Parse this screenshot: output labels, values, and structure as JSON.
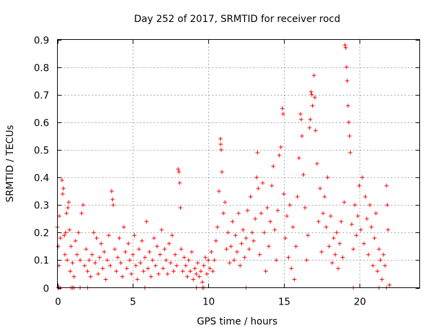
{
  "chart_data": {
    "type": "scatter",
    "title": "Day 252 of 2017, SRMTID for receiver rocd",
    "xlabel": "GPS time / hours",
    "ylabel": "SRMTID / TECUs",
    "xlim": [
      0,
      24
    ],
    "ylim": [
      0,
      0.9
    ],
    "grid": true,
    "marker": "+",
    "color": "#ff0000",
    "x_ticks": [
      0,
      5,
      10,
      15,
      20
    ],
    "x_tick_labels": [
      "0",
      "5",
      "10",
      "15",
      "20"
    ],
    "y_ticks": [
      0,
      0.1,
      0.2,
      0.3,
      0.4,
      0.5,
      0.6,
      0.7,
      0.8,
      0.9
    ],
    "y_tick_labels": [
      "0",
      "0.1",
      "0.2",
      "0.3",
      "0.4",
      "0.5",
      "0.6",
      "0.7",
      "0.8",
      "0.9"
    ],
    "series": [
      {
        "name": "SRMTID",
        "points": [
          [
            0.0,
            0.22
          ],
          [
            0.05,
            0.15
          ],
          [
            0.1,
            0.08
          ],
          [
            0.12,
            0.26
          ],
          [
            0.2,
            0.18
          ],
          [
            0.3,
            0.39
          ],
          [
            0.35,
            0.34
          ],
          [
            0.4,
            0.36
          ],
          [
            0.45,
            0.19
          ],
          [
            0.5,
            0.12
          ],
          [
            0.55,
            0.2
          ],
          [
            0.6,
            0.27
          ],
          [
            0.65,
            0.1
          ],
          [
            0.7,
            0.29
          ],
          [
            0.75,
            0.31
          ],
          [
            0.8,
            0.21
          ],
          [
            0.85,
            0.06
          ],
          [
            0.9,
            0.15
          ],
          [
            1.0,
            0.09
          ],
          [
            1.1,
            0.04
          ],
          [
            1.2,
            0.17
          ],
          [
            1.3,
            0.12
          ],
          [
            1.4,
            0.2
          ],
          [
            1.5,
            0.1
          ],
          [
            1.6,
            0.27
          ],
          [
            1.7,
            0.3
          ],
          [
            1.8,
            0.08
          ],
          [
            1.9,
            0.14
          ],
          [
            2.0,
            0.06
          ],
          [
            2.1,
            0.1
          ],
          [
            2.2,
            0.04
          ],
          [
            2.3,
            0.12
          ],
          [
            2.4,
            0.2
          ],
          [
            2.5,
            0.09
          ],
          [
            2.6,
            0.18
          ],
          [
            2.7,
            0.05
          ],
          [
            2.8,
            0.11
          ],
          [
            2.9,
            0.16
          ],
          [
            3.0,
            0.07
          ],
          [
            3.1,
            0.13
          ],
          [
            3.2,
            0.03
          ],
          [
            3.3,
            0.1
          ],
          [
            3.4,
            0.19
          ],
          [
            3.5,
            0.08
          ],
          [
            3.6,
            0.35
          ],
          [
            3.65,
            0.32
          ],
          [
            3.7,
            0.3
          ],
          [
            3.8,
            0.14
          ],
          [
            3.9,
            0.06
          ],
          [
            4.0,
            0.11
          ],
          [
            4.1,
            0.18
          ],
          [
            4.2,
            0.09
          ],
          [
            4.3,
            0.04
          ],
          [
            4.4,
            0.22
          ],
          [
            4.5,
            0.13
          ],
          [
            4.6,
            0.07
          ],
          [
            4.7,
            0.16
          ],
          [
            4.8,
            0.1
          ],
          [
            4.9,
            0.05
          ],
          [
            5.0,
            0.12
          ],
          [
            5.1,
            0.19
          ],
          [
            5.2,
            0.08
          ],
          [
            5.3,
            0.03
          ],
          [
            5.4,
            0.14
          ],
          [
            5.5,
            0.09
          ],
          [
            5.6,
            0.17
          ],
          [
            5.7,
            0.06
          ],
          [
            5.8,
            0.11
          ],
          [
            5.9,
            0.24
          ],
          [
            6.0,
            0.07
          ],
          [
            6.1,
            0.13
          ],
          [
            6.2,
            0.04
          ],
          [
            6.3,
            0.1
          ],
          [
            6.4,
            0.18
          ],
          [
            6.5,
            0.08
          ],
          [
            6.6,
            0.15
          ],
          [
            6.7,
            0.05
          ],
          [
            6.8,
            0.12
          ],
          [
            6.9,
            0.21
          ],
          [
            7.0,
            0.07
          ],
          [
            7.1,
            0.14
          ],
          [
            7.2,
            0.1
          ],
          [
            7.3,
            0.05
          ],
          [
            7.4,
            0.16
          ],
          [
            7.5,
            0.09
          ],
          [
            7.6,
            0.19
          ],
          [
            7.7,
            0.06
          ],
          [
            7.8,
            0.12
          ],
          [
            7.9,
            0.08
          ],
          [
            8.0,
            0.43
          ],
          [
            8.05,
            0.42
          ],
          [
            8.1,
            0.38
          ],
          [
            8.15,
            0.29
          ],
          [
            8.2,
            0.14
          ],
          [
            8.3,
            0.06
          ],
          [
            8.4,
            0.11
          ],
          [
            8.5,
            0.08
          ],
          [
            8.6,
            0.04
          ],
          [
            8.7,
            0.1
          ],
          [
            8.8,
            0.06
          ],
          [
            8.9,
            0.13
          ],
          [
            9.0,
            0.03
          ],
          [
            9.1,
            0.07
          ],
          [
            9.2,
            0.05
          ],
          [
            9.3,
            0.09
          ],
          [
            9.4,
            0.04
          ],
          [
            9.5,
            0.06
          ],
          [
            9.6,
            0.02
          ],
          [
            9.7,
            0.08
          ],
          [
            9.8,
            0.11
          ],
          [
            9.9,
            0.05
          ],
          [
            10.0,
            0.1
          ],
          [
            10.1,
            0.07
          ],
          [
            10.2,
            0.13
          ],
          [
            10.3,
            0.06
          ],
          [
            10.4,
            0.1
          ],
          [
            10.5,
            0.17
          ],
          [
            10.6,
            0.22
          ],
          [
            10.7,
            0.35
          ],
          [
            10.8,
            0.54
          ],
          [
            10.82,
            0.52
          ],
          [
            10.85,
            0.5
          ],
          [
            10.9,
            0.42
          ],
          [
            11.0,
            0.27
          ],
          [
            11.1,
            0.31
          ],
          [
            11.2,
            0.14
          ],
          [
            11.3,
            0.2
          ],
          [
            11.4,
            0.09
          ],
          [
            11.5,
            0.15
          ],
          [
            11.6,
            0.24
          ],
          [
            11.7,
            0.1
          ],
          [
            11.8,
            0.19
          ],
          [
            11.9,
            0.13
          ],
          [
            12.0,
            0.27
          ],
          [
            12.1,
            0.08
          ],
          [
            12.2,
            0.16
          ],
          [
            12.3,
            0.21
          ],
          [
            12.4,
            0.11
          ],
          [
            12.5,
            0.18
          ],
          [
            12.6,
            0.28
          ],
          [
            12.7,
            0.14
          ],
          [
            12.8,
            0.33
          ],
          [
            12.9,
            0.2
          ],
          [
            13.0,
            0.17
          ],
          [
            13.1,
            0.25
          ],
          [
            13.2,
            0.4
          ],
          [
            13.25,
            0.49
          ],
          [
            13.3,
            0.36
          ],
          [
            13.4,
            0.12
          ],
          [
            13.5,
            0.27
          ],
          [
            13.6,
            0.38
          ],
          [
            13.7,
            0.2
          ],
          [
            13.8,
            0.06
          ],
          [
            13.9,
            0.29
          ],
          [
            14.0,
            0.15
          ],
          [
            14.1,
            0.24
          ],
          [
            14.2,
            0.37
          ],
          [
            14.3,
            0.44
          ],
          [
            14.4,
            0.21
          ],
          [
            14.5,
            0.1
          ],
          [
            14.6,
            0.28
          ],
          [
            14.7,
            0.48
          ],
          [
            14.8,
            0.51
          ],
          [
            14.9,
            0.65
          ],
          [
            14.95,
            0.63
          ],
          [
            15.0,
            0.34
          ],
          [
            15.1,
            0.18
          ],
          [
            15.2,
            0.26
          ],
          [
            15.3,
            0.11
          ],
          [
            15.4,
            0.3
          ],
          [
            15.5,
            0.07
          ],
          [
            15.6,
            0.22
          ],
          [
            15.7,
            0.03
          ],
          [
            15.8,
            0.15
          ],
          [
            15.9,
            0.33
          ],
          [
            16.0,
            0.47
          ],
          [
            16.1,
            0.63
          ],
          [
            16.15,
            0.61
          ],
          [
            16.2,
            0.55
          ],
          [
            16.3,
            0.41
          ],
          [
            16.4,
            0.29
          ],
          [
            16.5,
            0.1
          ],
          [
            16.6,
            0.19
          ],
          [
            16.7,
            0.58
          ],
          [
            16.75,
            0.61
          ],
          [
            16.8,
            0.71
          ],
          [
            16.85,
            0.7
          ],
          [
            16.9,
            0.66
          ],
          [
            17.0,
            0.77
          ],
          [
            17.05,
            0.69
          ],
          [
            17.1,
            0.57
          ],
          [
            17.2,
            0.45
          ],
          [
            17.3,
            0.24
          ],
          [
            17.4,
            0.36
          ],
          [
            17.5,
            0.13
          ],
          [
            17.6,
            0.27
          ],
          [
            17.7,
            0.33
          ],
          [
            17.8,
            0.22
          ],
          [
            17.9,
            0.4
          ],
          [
            18.0,
            0.15
          ],
          [
            18.1,
            0.26
          ],
          [
            18.2,
            0.09
          ],
          [
            18.3,
            0.18
          ],
          [
            18.4,
            0.12
          ],
          [
            18.5,
            0.2
          ],
          [
            18.6,
            0.07
          ],
          [
            18.7,
            0.16
          ],
          [
            18.8,
            0.24
          ],
          [
            18.9,
            0.11
          ],
          [
            19.0,
            0.31
          ],
          [
            19.05,
            0.88
          ],
          [
            19.1,
            0.87
          ],
          [
            19.15,
            0.8
          ],
          [
            19.2,
            0.75
          ],
          [
            19.25,
            0.66
          ],
          [
            19.3,
            0.6
          ],
          [
            19.35,
            0.55
          ],
          [
            19.4,
            0.49
          ],
          [
            19.5,
            0.23
          ],
          [
            19.6,
            0.14
          ],
          [
            19.7,
            0.3
          ],
          [
            19.8,
            0.19
          ],
          [
            19.9,
            0.26
          ],
          [
            20.0,
            0.37
          ],
          [
            20.1,
            0.21
          ],
          [
            20.2,
            0.4
          ],
          [
            20.3,
            0.16
          ],
          [
            20.4,
            0.33
          ],
          [
            20.5,
            0.25
          ],
          [
            20.6,
            0.12
          ],
          [
            20.7,
            0.3
          ],
          [
            20.8,
            0.22
          ],
          [
            20.9,
            0.08
          ],
          [
            21.0,
            0.18
          ],
          [
            21.1,
            0.27
          ],
          [
            21.2,
            0.06
          ],
          [
            21.3,
            0.14
          ],
          [
            21.4,
            0.1
          ],
          [
            21.5,
            0.03
          ],
          [
            21.6,
            0.12
          ],
          [
            21.7,
            0.08
          ],
          [
            21.8,
            0.37
          ],
          [
            21.85,
            0.3
          ],
          [
            21.9,
            0.21
          ],
          [
            22.0,
            0.01
          ],
          [
            0.05,
            0.0
          ],
          [
            0.1,
            0.0
          ],
          [
            0.2,
            0.0
          ],
          [
            0.9,
            0.0
          ],
          [
            1.0,
            0.0
          ],
          [
            1.1,
            0.0
          ],
          [
            1.5,
            0.0
          ],
          [
            2.0,
            0.0
          ],
          [
            5.8,
            0.0
          ],
          [
            9.2,
            0.0
          ],
          [
            9.6,
            0.0
          ],
          [
            9.7,
            0.0
          ],
          [
            12.5,
            0.0
          ],
          [
            19.6,
            0.0
          ],
          [
            21.3,
            0.0
          ],
          [
            21.8,
            0.0
          ]
        ]
      }
    ]
  }
}
